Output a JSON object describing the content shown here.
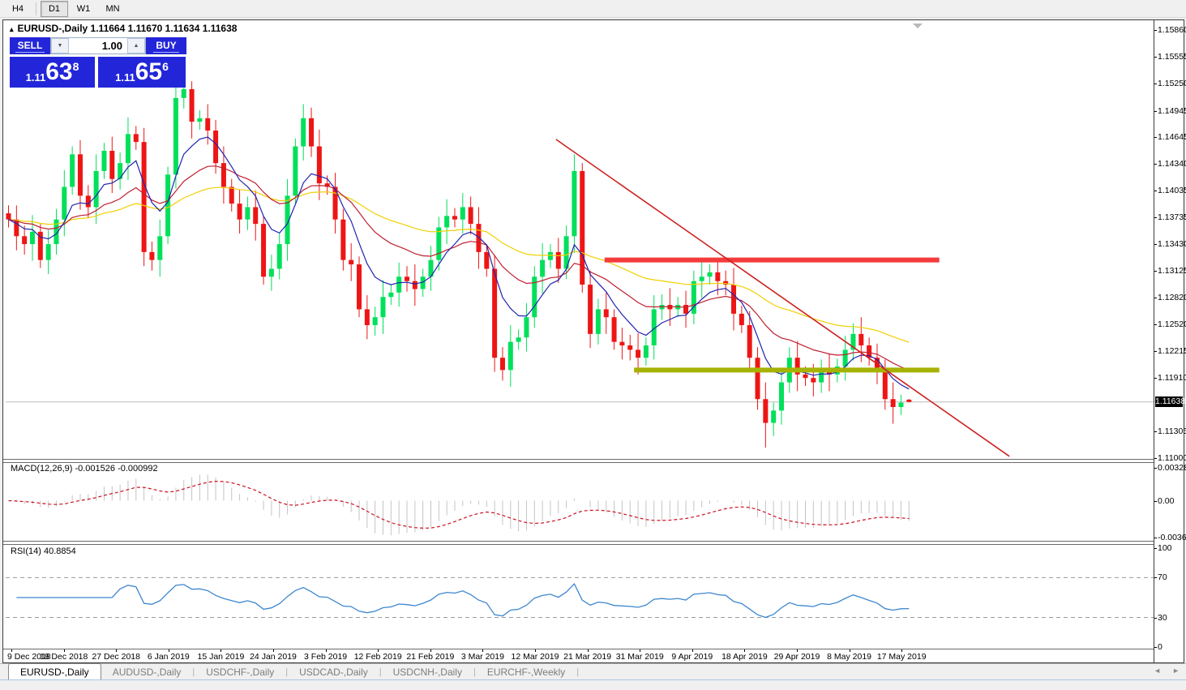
{
  "toolbar": {
    "buttons": [
      {
        "label": "H4",
        "active": false
      },
      {
        "label": "D1",
        "active": true
      },
      {
        "label": "W1",
        "active": false
      },
      {
        "label": "MN",
        "active": false
      }
    ]
  },
  "chart_header": {
    "collapse_icon": "▴",
    "title": "EURUSD-,Daily  1.11664 1.11670 1.11634 1.11638"
  },
  "trade_panel": {
    "accent_color": "#2326d8",
    "sell_label": "SELL",
    "buy_label": "BUY",
    "volume": "1.00",
    "spin_down_icon": "▼",
    "spin_up_icon": "▲",
    "sell_price": {
      "prefix": "1.11",
      "big": "63",
      "sup": "8"
    },
    "buy_price": {
      "prefix": "1.11",
      "big": "65",
      "sup": "6"
    }
  },
  "price_axis": {
    "labels": [
      "1.15860",
      "1.15555",
      "1.15250",
      "1.14945",
      "1.14645",
      "1.14340",
      "1.14035",
      "1.13735",
      "1.13430",
      "1.13125",
      "1.12820",
      "1.12520",
      "1.12215",
      "1.11910",
      "1.11305",
      "1.11000"
    ],
    "current_price": "1.11638"
  },
  "macd_panel": {
    "label": "MACD(12,26,9) -0.001526 -0.000992",
    "axis_labels": [
      "0.003287",
      "0.00",
      "-0.003651"
    ]
  },
  "rsi_panel": {
    "label": "RSI(14) 40.8854",
    "axis_labels": [
      "100",
      "70",
      "30",
      "0"
    ]
  },
  "date_axis": {
    "labels": [
      "9 Dec 2018",
      "18 Dec 2018",
      "27 Dec 2018",
      "6 Jan 2019",
      "15 Jan 2019",
      "24 Jan 2019",
      "3 Feb 2019",
      "12 Feb 2019",
      "21 Feb 2019",
      "3 Mar 2019",
      "12 Mar 2019",
      "21 Mar 2019",
      "31 Mar 2019",
      "9 Apr 2019",
      "18 Apr 2019",
      "29 Apr 2019",
      "8 May 2019",
      "17 May 2019"
    ]
  },
  "tabs": {
    "items": [
      {
        "label": "EURUSD-,Daily",
        "active": true
      },
      {
        "label": "AUDUSD-,Daily",
        "active": false
      },
      {
        "label": "USDCHF-,Daily",
        "active": false
      },
      {
        "label": "USDCAD-,Daily",
        "active": false
      },
      {
        "label": "USDCNH-,Daily",
        "active": false
      },
      {
        "label": "EURCHF-,Weekly",
        "active": false
      }
    ],
    "scroll_left_icon": "◄",
    "scroll_right_icon": "►"
  },
  "chart_data": {
    "type": "candlestick",
    "symbol": "EURUSD-",
    "timeframe": "Daily",
    "ohlc_display": {
      "open": 1.11664,
      "high": 1.1167,
      "low": 1.11634,
      "close": 1.11638
    },
    "price_scale": {
      "top": 1.15963,
      "bottom": 1.11
    },
    "colors": {
      "bull": "#00e05a",
      "bear": "#ee1515",
      "ma_fast": "#2024b0",
      "ma_mid": "#bf2030",
      "ma_slow": "#f0d000",
      "trendline": "#cc2222",
      "resistance": "#f43b3b",
      "support": "#a6b204",
      "current_line": "#bcbcbc",
      "macd_hist": "#c4c4c4",
      "macd_signal": "#cc1122",
      "rsi_line": "#3d87cf",
      "rsi_levels": "#9a9a9a",
      "shift_marker": "#b8b8b8"
    },
    "overlays": {
      "ma_fast": {
        "type": "EMA",
        "period": 7
      },
      "ma_mid": {
        "type": "EMA",
        "period": 20
      },
      "ma_slow": {
        "type": "EMA",
        "period": 45
      },
      "trendline": {
        "index1": 68.7,
        "price1": 1.1462,
        "index2": 125.6,
        "price2": 1.1102
      },
      "resistance": {
        "price": 1.1325,
        "index1": 74.8,
        "index2": 116.8
      },
      "support": {
        "price": 1.12,
        "index1": 78.5,
        "index2": 116.8
      },
      "current_price": 1.11638
    },
    "macd": {
      "fast": 12,
      "slow": 26,
      "signal": 9,
      "last_macd": -0.001526,
      "last_signal": -0.000992,
      "scale_top": 0.003287,
      "scale_bottom": -0.003651
    },
    "rsi": {
      "period": 14,
      "last": 40.8854,
      "levels": [
        70,
        30
      ],
      "scale": [
        0,
        100
      ]
    },
    "candles": [
      [
        1.1378,
        1.1387,
        1.1362,
        1.1371
      ],
      [
        1.1371,
        1.1387,
        1.1336,
        1.1352
      ],
      [
        1.1352,
        1.1364,
        1.1331,
        1.1343
      ],
      [
        1.1343,
        1.1376,
        1.1324,
        1.1357
      ],
      [
        1.1357,
        1.1366,
        1.1316,
        1.1325
      ],
      [
        1.1325,
        1.1359,
        1.1309,
        1.1343
      ],
      [
        1.1343,
        1.1383,
        1.1331,
        1.1371
      ],
      [
        1.1371,
        1.1427,
        1.1352,
        1.1408
      ],
      [
        1.1408,
        1.1454,
        1.1399,
        1.1445
      ],
      [
        1.1445,
        1.1461,
        1.1382,
        1.1398
      ],
      [
        1.1398,
        1.141,
        1.1373,
        1.1385
      ],
      [
        1.1385,
        1.1445,
        1.1366,
        1.1426
      ],
      [
        1.1426,
        1.1458,
        1.1417,
        1.1449
      ],
      [
        1.1449,
        1.1465,
        1.1401,
        1.1417
      ],
      [
        1.1417,
        1.1447,
        1.1405,
        1.1435
      ],
      [
        1.1435,
        1.1487,
        1.1416,
        1.1468
      ],
      [
        1.1468,
        1.1477,
        1.145,
        1.1459
      ],
      [
        1.1459,
        1.1475,
        1.1318,
        1.1334
      ],
      [
        1.1334,
        1.1346,
        1.1313,
        1.1325
      ],
      [
        1.1325,
        1.1371,
        1.1306,
        1.1352
      ],
      [
        1.1352,
        1.1431,
        1.1343,
        1.1422
      ],
      [
        1.1422,
        1.1525,
        1.1406,
        1.1509
      ],
      [
        1.1509,
        1.1531,
        1.1497,
        1.1519
      ],
      [
        1.1519,
        1.1528,
        1.1463,
        1.1482
      ],
      [
        1.1482,
        1.1495,
        1.1473,
        1.1486
      ],
      [
        1.1486,
        1.1502,
        1.1456,
        1.1472
      ],
      [
        1.1472,
        1.1484,
        1.1423,
        1.1435
      ],
      [
        1.1435,
        1.1454,
        1.1389,
        1.1408
      ],
      [
        1.1408,
        1.1417,
        1.138,
        1.1389
      ],
      [
        1.1389,
        1.1405,
        1.1355,
        1.1371
      ],
      [
        1.1371,
        1.1397,
        1.1359,
        1.1385
      ],
      [
        1.1385,
        1.1404,
        1.1347,
        1.1366
      ],
      [
        1.1366,
        1.1375,
        1.1297,
        1.1306
      ],
      [
        1.1306,
        1.1331,
        1.129,
        1.1315
      ],
      [
        1.1315,
        1.1355,
        1.1303,
        1.1343
      ],
      [
        1.1343,
        1.1417,
        1.1324,
        1.1398
      ],
      [
        1.1398,
        1.1463,
        1.1389,
        1.1454
      ],
      [
        1.1454,
        1.1502,
        1.1438,
        1.1486
      ],
      [
        1.1486,
        1.1498,
        1.1442,
        1.1454
      ],
      [
        1.1454,
        1.1473,
        1.1393,
        1.1412
      ],
      [
        1.1412,
        1.1421,
        1.1399,
        1.1408
      ],
      [
        1.1408,
        1.1424,
        1.1355,
        1.1371
      ],
      [
        1.1371,
        1.1383,
        1.1313,
        1.1325
      ],
      [
        1.1325,
        1.1344,
        1.1301,
        1.132
      ],
      [
        1.132,
        1.1329,
        1.126,
        1.1269
      ],
      [
        1.1269,
        1.1285,
        1.1235,
        1.1251
      ],
      [
        1.1251,
        1.1272,
        1.1239,
        1.126
      ],
      [
        1.126,
        1.1302,
        1.1241,
        1.1283
      ],
      [
        1.1283,
        1.1297,
        1.1274,
        1.1288
      ],
      [
        1.1288,
        1.1322,
        1.1272,
        1.1306
      ],
      [
        1.1306,
        1.1318,
        1.1289,
        1.1301
      ],
      [
        1.1301,
        1.132,
        1.1273,
        1.1292
      ],
      [
        1.1292,
        1.1315,
        1.1283,
        1.1306
      ],
      [
        1.1306,
        1.1341,
        1.129,
        1.1325
      ],
      [
        1.1325,
        1.1374,
        1.1313,
        1.1362
      ],
      [
        1.1362,
        1.1394,
        1.1343,
        1.1375
      ],
      [
        1.1375,
        1.1384,
        1.1362,
        1.1371
      ],
      [
        1.1371,
        1.1401,
        1.1355,
        1.1385
      ],
      [
        1.1385,
        1.1397,
        1.1354,
        1.1366
      ],
      [
        1.1366,
        1.1385,
        1.1315,
        1.1334
      ],
      [
        1.1334,
        1.1343,
        1.1306,
        1.1315
      ],
      [
        1.1315,
        1.1331,
        1.1198,
        1.1214
      ],
      [
        1.1214,
        1.1226,
        1.1188,
        1.12
      ],
      [
        1.12,
        1.1251,
        1.1181,
        1.1232
      ],
      [
        1.1232,
        1.1246,
        1.1223,
        1.1237
      ],
      [
        1.1237,
        1.1276,
        1.1221,
        1.126
      ],
      [
        1.126,
        1.1318,
        1.1248,
        1.1306
      ],
      [
        1.1306,
        1.1344,
        1.1287,
        1.1325
      ],
      [
        1.1325,
        1.1343,
        1.1316,
        1.1334
      ],
      [
        1.1334,
        1.135,
        1.1299,
        1.1315
      ],
      [
        1.1315,
        1.1364,
        1.1303,
        1.1352
      ],
      [
        1.1352,
        1.1445,
        1.1333,
        1.1426
      ],
      [
        1.1426,
        1.1435,
        1.1288,
        1.1297
      ],
      [
        1.1297,
        1.1313,
        1.1225,
        1.1241
      ],
      [
        1.1241,
        1.1281,
        1.1229,
        1.1269
      ],
      [
        1.1269,
        1.1288,
        1.1241,
        1.126
      ],
      [
        1.126,
        1.1269,
        1.1223,
        1.1232
      ],
      [
        1.1232,
        1.1248,
        1.1212,
        1.1228
      ],
      [
        1.1228,
        1.124,
        1.1211,
        1.1223
      ],
      [
        1.1223,
        1.1242,
        1.1195,
        1.1214
      ],
      [
        1.1214,
        1.1237,
        1.1205,
        1.1228
      ],
      [
        1.1228,
        1.1285,
        1.1212,
        1.1269
      ],
      [
        1.1269,
        1.1286,
        1.1257,
        1.1274
      ],
      [
        1.1274,
        1.1293,
        1.125,
        1.1269
      ],
      [
        1.1269,
        1.1283,
        1.126,
        1.1274
      ],
      [
        1.1274,
        1.129,
        1.1248,
        1.1264
      ],
      [
        1.1264,
        1.1313,
        1.1252,
        1.1301
      ],
      [
        1.1301,
        1.1325,
        1.1282,
        1.1306
      ],
      [
        1.1306,
        1.132,
        1.1297,
        1.1311
      ],
      [
        1.1311,
        1.1327,
        1.1285,
        1.1301
      ],
      [
        1.1301,
        1.1313,
        1.1285,
        1.1297
      ],
      [
        1.1297,
        1.1316,
        1.1245,
        1.1264
      ],
      [
        1.1264,
        1.1273,
        1.1242,
        1.1251
      ],
      [
        1.1251,
        1.1267,
        1.1198,
        1.1214
      ],
      [
        1.1214,
        1.1226,
        1.1155,
        1.1167
      ],
      [
        1.1167,
        1.1186,
        1.1112,
        1.114
      ],
      [
        1.114,
        1.1163,
        1.1125,
        1.1154
      ],
      [
        1.1154,
        1.1202,
        1.1138,
        1.1186
      ],
      [
        1.1186,
        1.1226,
        1.1174,
        1.1214
      ],
      [
        1.1214,
        1.1233,
        1.1176,
        1.1195
      ],
      [
        1.1195,
        1.1204,
        1.1182,
        1.1191
      ],
      [
        1.1191,
        1.1207,
        1.117,
        1.1186
      ],
      [
        1.1186,
        1.1212,
        1.1174,
        1.12
      ],
      [
        1.12,
        1.1219,
        1.1176,
        1.1195
      ],
      [
        1.1195,
        1.1213,
        1.1186,
        1.1204
      ],
      [
        1.1204,
        1.1239,
        1.1188,
        1.1223
      ],
      [
        1.1223,
        1.1253,
        1.1211,
        1.1241
      ],
      [
        1.1241,
        1.126,
        1.1209,
        1.1228
      ],
      [
        1.1228,
        1.1237,
        1.1205,
        1.1214
      ],
      [
        1.1214,
        1.123,
        1.1184,
        1.12
      ],
      [
        1.12,
        1.1212,
        1.1155,
        1.1167
      ],
      [
        1.1167,
        1.1186,
        1.1139,
        1.1158
      ],
      [
        1.1158,
        1.1172,
        1.1149,
        1.1163
      ],
      [
        1.11664,
        1.1167,
        1.11634,
        1.11638
      ]
    ]
  }
}
